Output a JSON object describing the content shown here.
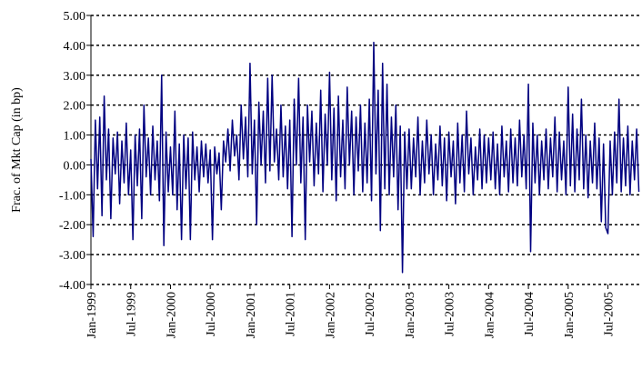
{
  "chart_data": {
    "type": "line",
    "y_label": "Frac. of Mkt Cap (in bp)",
    "categories": [
      "Jan-1999",
      null,
      null,
      null,
      null,
      null,
      null,
      null,
      null,
      null,
      null,
      null,
      null,
      null,
      null,
      null,
      null,
      null,
      "Jul-1999",
      null,
      null,
      null,
      null,
      null,
      null,
      null,
      null,
      null,
      null,
      null,
      null,
      null,
      null,
      null,
      null,
      null,
      "Jan-2000",
      null,
      null,
      null,
      null,
      null,
      null,
      null,
      null,
      null,
      null,
      null,
      null,
      null,
      null,
      null,
      null,
      null,
      "Jul-2000",
      null,
      null,
      null,
      null,
      null,
      null,
      null,
      null,
      null,
      null,
      null,
      null,
      null,
      null,
      null,
      null,
      null,
      "Jan-2001",
      null,
      null,
      null,
      null,
      null,
      null,
      null,
      null,
      null,
      null,
      null,
      null,
      null,
      null,
      null,
      null,
      null,
      "Jul-2001",
      null,
      null,
      null,
      null,
      null,
      null,
      null,
      null,
      null,
      null,
      null,
      null,
      null,
      null,
      null,
      null,
      null,
      "Jan-2002",
      null,
      null,
      null,
      null,
      null,
      null,
      null,
      null,
      null,
      null,
      null,
      null,
      null,
      null,
      null,
      null,
      null,
      "Jul-2002",
      null,
      null,
      null,
      null,
      null,
      null,
      null,
      null,
      null,
      null,
      null,
      null,
      null,
      null,
      null,
      null,
      null,
      "Jan-2003",
      null,
      null,
      null,
      null,
      null,
      null,
      null,
      null,
      null,
      null,
      null,
      null,
      null,
      null,
      null,
      null,
      null,
      "Jul-2003",
      null,
      null,
      null,
      null,
      null,
      null,
      null,
      null,
      null,
      null,
      null,
      null,
      null,
      null,
      null,
      null,
      null,
      "Jan-2004",
      null,
      null,
      null,
      null,
      null,
      null,
      null,
      null,
      null,
      null,
      null,
      null,
      null,
      null,
      null,
      null,
      null,
      "Jul-2004",
      null,
      null,
      null,
      null,
      null,
      null,
      null,
      null,
      null,
      null,
      null,
      null,
      null,
      null,
      null,
      null,
      null,
      "Jan-2005",
      null,
      null,
      null,
      null,
      null,
      null,
      null,
      null,
      null,
      null,
      null,
      null,
      null,
      null,
      null,
      null,
      null,
      "Jul-2005",
      null,
      null,
      null,
      null,
      null,
      null,
      null,
      null,
      null,
      null,
      null,
      null,
      null,
      null
    ],
    "values": [
      0.2,
      -2.4,
      1.5,
      -0.8,
      1.6,
      -1.7,
      2.3,
      -0.5,
      1.2,
      -1.8,
      0.9,
      -0.3,
      1.1,
      -1.3,
      0.8,
      -0.6,
      1.4,
      -1.0,
      0.5,
      -2.5,
      1.0,
      -0.7,
      1.2,
      -1.8,
      2.0,
      -0.4,
      0.9,
      -1.0,
      1.3,
      -0.5,
      0.8,
      -1.2,
      3.0,
      -2.7,
      1.1,
      -0.9,
      0.6,
      -1.0,
      1.8,
      -1.5,
      0.7,
      -2.5,
      1.0,
      -0.8,
      0.9,
      -2.5,
      1.1,
      -0.5,
      0.6,
      -0.9,
      0.8,
      -0.4,
      0.7,
      -0.6,
      0.5,
      -2.5,
      0.6,
      -0.3,
      0.4,
      -1.5,
      0.8,
      0.1,
      1.2,
      -0.2,
      1.5,
      0.3,
      1.0,
      -0.5,
      2.0,
      0.2,
      1.6,
      -0.4,
      3.4,
      -0.3,
      1.5,
      -2.0,
      2.1,
      0.0,
      1.8,
      -0.6,
      2.9,
      -0.2,
      3.0,
      0.1,
      1.2,
      -0.5,
      2.0,
      -0.4,
      1.3,
      -0.8,
      1.5,
      -2.4,
      2.2,
      0.0,
      2.9,
      -0.6,
      1.6,
      -2.5,
      2.0,
      0.1,
      1.8,
      -0.7,
      1.4,
      -0.3,
      2.5,
      -0.9,
      1.7,
      0.0,
      3.1,
      -0.5,
      1.9,
      -1.2,
      2.3,
      -0.4,
      1.5,
      -0.8,
      2.6,
      0.0,
      1.8,
      -1.0,
      1.6,
      -0.2,
      2.0,
      -0.9,
      1.4,
      -0.6,
      2.2,
      -1.2,
      4.1,
      -0.3,
      2.5,
      -2.2,
      3.4,
      -0.8,
      2.7,
      -1.0,
      1.6,
      -0.4,
      2.0,
      -1.5,
      1.3,
      -3.6,
      1.1,
      -0.8,
      1.2,
      -0.8,
      0.9,
      -0.4,
      1.6,
      -1.0,
      0.8,
      -0.6,
      1.5,
      -0.3,
      1.0,
      -1.0,
      0.7,
      -0.5,
      1.3,
      -0.7,
      0.9,
      -1.2,
      1.1,
      -0.4,
      0.8,
      -1.3,
      1.4,
      -0.6,
      1.0,
      -0.9,
      1.8,
      -0.3,
      0.9,
      -1.0,
      0.6,
      -0.5,
      1.2,
      -0.8,
      1.0,
      -0.6,
      0.9,
      -0.5,
      1.1,
      -0.8,
      0.7,
      -1.0,
      1.3,
      -0.4,
      0.8,
      -0.9,
      1.2,
      -0.6,
      0.9,
      -0.7,
      1.5,
      -0.4,
      1.0,
      -0.8,
      2.7,
      -2.9,
      1.4,
      -0.6,
      1.0,
      -1.0,
      0.8,
      -0.5,
      1.2,
      -0.8,
      0.9,
      -0.4,
      1.6,
      -0.9,
      1.1,
      -0.5,
      0.8,
      -1.0,
      2.6,
      -0.7,
      1.7,
      -0.9,
      1.2,
      -0.5,
      2.2,
      -0.8,
      1.0,
      -1.1,
      0.8,
      -0.6,
      1.4,
      -0.8,
      0.9,
      -1.9,
      0.7,
      -2.1,
      -2.3,
      0.8,
      -1.0,
      1.1,
      -0.6,
      2.2,
      -0.9,
      0.9,
      -0.7,
      1.3,
      -1.0,
      0.8,
      -0.5,
      1.2,
      -0.9
    ],
    "color": "#000080",
    "ylim": [
      -4,
      5
    ],
    "yticks": [
      {
        "value": -4,
        "label": "-4.00"
      },
      {
        "value": -3,
        "label": "-3.00"
      },
      {
        "value": -2,
        "label": "-2.00"
      },
      {
        "value": -1,
        "label": "-1.00"
      },
      {
        "value": 0,
        "label": "0.00"
      },
      {
        "value": 1,
        "label": "1.00"
      },
      {
        "value": 2,
        "label": "2.00"
      },
      {
        "value": 3,
        "label": "3.00"
      },
      {
        "value": 4,
        "label": "4.00"
      },
      {
        "value": 5,
        "label": "5.00"
      }
    ],
    "grid": true
  }
}
